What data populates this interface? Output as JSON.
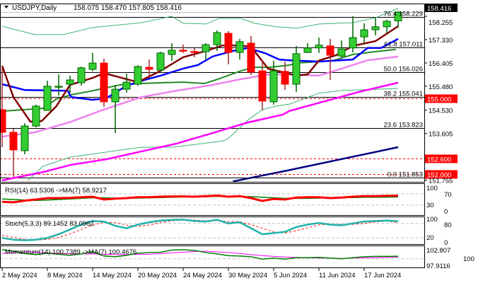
{
  "header": {
    "symbol_timeframe": "USDJPY,Daily",
    "ohlc_text": "158.075 158.470 157.805 158.416",
    "dropdown_icon": "triangle-down-icon"
  },
  "colors": {
    "bull": "#32cd32",
    "bear": "#ff0000",
    "ma_fast": "#800000",
    "ma_blue": "#0000ff",
    "ma_green": "#228b22",
    "ma_violet": "#ee82ee",
    "ma_magenta": "#ff00ff",
    "ma_navy": "#000080",
    "bollinger": "#3cb371",
    "rsi": "#ff0000",
    "rsi_ma": "#008000",
    "stoch": "#20b2aa",
    "stoch_signal": "#ff0000",
    "momentum": "#008000",
    "momentum_ma": "#ff00ff"
  },
  "price_axis": {
    "labels": [
      "158.255",
      "157.330",
      "156.405",
      "155.480",
      "154.530",
      "153.605",
      "151.755"
    ],
    "label_values": [
      158.255,
      157.33,
      156.405,
      155.48,
      154.53,
      153.605,
      151.755
    ],
    "current_price": "158.416",
    "levels": [
      {
        "text": "155.000",
        "value": 155.0
      },
      {
        "text": "152.600",
        "value": 152.6
      },
      {
        "text": "152.000",
        "value": 152.0
      }
    ]
  },
  "fibonacci": [
    {
      "text": "76.4 158.229",
      "value": 158.229
    },
    {
      "text": "61.8 157.011",
      "value": 157.011
    },
    {
      "text": "50.0 156.026",
      "value": 156.026
    },
    {
      "text": "38.2 155.041",
      "value": 155.041
    },
    {
      "text": "23.6 153.823",
      "value": 153.823
    },
    {
      "text": "0.0 151.853",
      "value": 151.853
    }
  ],
  "chart_data": {
    "type": "candlestick",
    "candles": [
      [
        154.55,
        156.29,
        153.06,
        153.65
      ],
      [
        153.65,
        153.79,
        151.88,
        152.95
      ],
      [
        152.92,
        154.01,
        152.78,
        153.9
      ],
      [
        153.9,
        154.75,
        153.85,
        154.69
      ],
      [
        154.52,
        155.7,
        154.52,
        155.48
      ],
      [
        155.45,
        155.95,
        155.11,
        155.48
      ],
      [
        155.56,
        155.9,
        155.22,
        155.73
      ],
      [
        155.62,
        156.26,
        155.5,
        156.21
      ],
      [
        156.15,
        156.8,
        156.07,
        156.4
      ],
      [
        156.4,
        156.57,
        154.66,
        154.86
      ],
      [
        154.86,
        155.53,
        153.62,
        155.36
      ],
      [
        155.36,
        155.98,
        155.22,
        155.64
      ],
      [
        155.56,
        156.32,
        155.5,
        156.26
      ],
      [
        156.23,
        156.54,
        155.81,
        156.15
      ],
      [
        156.12,
        156.85,
        156.05,
        156.8
      ],
      [
        156.74,
        157.19,
        156.49,
        156.91
      ],
      [
        156.91,
        157.13,
        156.8,
        156.9
      ],
      [
        156.86,
        157.0,
        156.63,
        156.84
      ],
      [
        156.85,
        157.19,
        156.54,
        157.13
      ],
      [
        157.13,
        157.7,
        156.88,
        157.61
      ],
      [
        157.58,
        157.67,
        156.35,
        156.82
      ],
      [
        156.82,
        157.36,
        156.54,
        157.25
      ],
      [
        157.19,
        157.47,
        155.92,
        156.04
      ],
      [
        156.09,
        156.51,
        154.52,
        154.89
      ],
      [
        154.86,
        156.49,
        154.75,
        156.09
      ],
      [
        156.07,
        156.46,
        155.33,
        155.56
      ],
      [
        155.56,
        157.08,
        155.25,
        156.77
      ],
      [
        156.82,
        157.19,
        156.8,
        157.0
      ],
      [
        157.0,
        157.41,
        156.8,
        157.11
      ],
      [
        157.08,
        157.36,
        155.73,
        156.71
      ],
      [
        156.68,
        157.3,
        156.57,
        156.96
      ],
      [
        157.0,
        158.26,
        156.82,
        157.41
      ],
      [
        157.44,
        157.98,
        157.16,
        157.72
      ],
      [
        157.72,
        158.2,
        157.5,
        157.84
      ],
      [
        157.84,
        158.12,
        157.58,
        158.06
      ],
      [
        158.075,
        158.47,
        157.805,
        158.416
      ]
    ],
    "overlays": [
      {
        "color_key": "bollinger",
        "width": 1,
        "points": [
          [
            0,
            157.86
          ],
          [
            2.9,
            157.53
          ],
          [
            5.4,
            157.53
          ],
          [
            8,
            157.81
          ],
          [
            12.3,
            158.0
          ],
          [
            15,
            158.26
          ],
          [
            16,
            157.98
          ],
          [
            18,
            157.95
          ],
          [
            19.2,
            158.17
          ],
          [
            21.1,
            158.17
          ],
          [
            22.3,
            157.98
          ],
          [
            24.2,
            157.84
          ],
          [
            25.4,
            157.81
          ],
          [
            26,
            157.78
          ],
          [
            28,
            157.95
          ],
          [
            31,
            158.0
          ],
          [
            33,
            158.2
          ],
          [
            35,
            158.57
          ]
        ]
      },
      {
        "color_key": "bollinger",
        "width": 1,
        "points": [
          [
            2.3,
            151.74
          ],
          [
            3.6,
            152.3
          ],
          [
            6.1,
            152.67
          ],
          [
            12.3,
            153.06
          ],
          [
            15.1,
            153.06
          ],
          [
            19.2,
            153.29
          ],
          [
            19.8,
            153.35
          ],
          [
            20.4,
            153.57
          ],
          [
            21.7,
            154.13
          ],
          [
            23,
            154.55
          ],
          [
            24.2,
            154.69
          ],
          [
            25.4,
            154.77
          ],
          [
            28,
            155.2
          ],
          [
            30,
            155.31
          ],
          [
            35,
            155.39
          ]
        ]
      },
      {
        "color_key": "ma_navy",
        "width": 2.5,
        "points": [
          [
            20.4,
            151.7
          ],
          [
            25.4,
            152.15
          ],
          [
            35,
            153.06
          ]
        ]
      },
      {
        "color_key": "ma_magenta",
        "width": 2.5,
        "points": [
          [
            0,
            151.74
          ],
          [
            3.6,
            152.07
          ],
          [
            6.1,
            152.36
          ],
          [
            9.2,
            152.58
          ],
          [
            12.3,
            152.89
          ],
          [
            15.4,
            153.2
          ],
          [
            18.6,
            153.62
          ],
          [
            21.7,
            154.04
          ],
          [
            24.8,
            154.35
          ],
          [
            25.4,
            154.5
          ],
          [
            31.5,
            155.25
          ],
          [
            35,
            155.62
          ]
        ]
      },
      {
        "color_key": "ma_violet",
        "width": 2.5,
        "points": [
          [
            0,
            153.48
          ],
          [
            2.9,
            153.65
          ],
          [
            6.1,
            154.07
          ],
          [
            8.6,
            154.49
          ],
          [
            12.3,
            155.05
          ],
          [
            15.4,
            155.3
          ],
          [
            18.6,
            155.53
          ],
          [
            21.1,
            155.76
          ],
          [
            23.6,
            155.95
          ],
          [
            25.4,
            155.95
          ],
          [
            28,
            155.9
          ],
          [
            29.8,
            156.15
          ],
          [
            32.3,
            156.51
          ],
          [
            35,
            156.66
          ]
        ]
      },
      {
        "color_key": "ma_green",
        "width": 2,
        "points": [
          [
            0,
            154.49
          ],
          [
            3.6,
            154.6
          ],
          [
            4.8,
            154.97
          ],
          [
            6.1,
            155.14
          ],
          [
            8,
            155.3
          ],
          [
            10.4,
            155.53
          ],
          [
            12.3,
            155.59
          ],
          [
            14.2,
            155.62
          ],
          [
            16,
            155.64
          ],
          [
            17.9,
            155.59
          ],
          [
            19.2,
            155.78
          ],
          [
            21.1,
            156.09
          ],
          [
            22.3,
            156.23
          ],
          [
            23.6,
            156.23
          ],
          [
            25.4,
            156.32
          ],
          [
            26,
            156.4
          ],
          [
            29.2,
            156.49
          ],
          [
            31,
            156.74
          ],
          [
            32.9,
            156.85
          ],
          [
            34.8,
            156.94
          ]
        ]
      },
      {
        "color_key": "ma_blue",
        "width": 2.5,
        "points": [
          [
            0,
            155.56
          ],
          [
            2,
            155.33
          ],
          [
            5.8,
            155.3
          ],
          [
            6.1,
            155.05
          ],
          [
            8,
            154.94
          ],
          [
            9.2,
            155.0
          ],
          [
            11,
            155.5
          ],
          [
            12.6,
            155.73
          ],
          [
            14,
            155.9
          ],
          [
            16,
            156.18
          ],
          [
            17.3,
            156.32
          ],
          [
            18.6,
            156.66
          ],
          [
            20.4,
            156.88
          ],
          [
            21.7,
            157.0
          ],
          [
            23.2,
            156.8
          ],
          [
            24.5,
            156.54
          ],
          [
            25.4,
            156.51
          ],
          [
            28,
            156.46
          ],
          [
            31,
            156.54
          ],
          [
            32.3,
            157.0
          ],
          [
            33.5,
            157.0
          ],
          [
            35,
            157.36
          ]
        ]
      },
      {
        "color_key": "ma_fast",
        "width": 2.5,
        "points": [
          [
            0,
            156.29
          ],
          [
            1,
            155.05
          ],
          [
            2.5,
            154.07
          ],
          [
            3.5,
            154.1
          ],
          [
            4.8,
            154.69
          ],
          [
            6,
            155.53
          ],
          [
            8,
            155.81
          ],
          [
            9,
            156.0
          ],
          [
            12,
            155.64
          ],
          [
            14,
            156.09
          ],
          [
            16,
            156.63
          ],
          [
            18,
            156.88
          ],
          [
            19.5,
            157.1
          ],
          [
            21,
            157.1
          ],
          [
            22,
            157.05
          ],
          [
            23.5,
            156.18
          ],
          [
            24.8,
            156.04
          ],
          [
            26,
            155.9
          ],
          [
            27,
            155.95
          ],
          [
            28,
            156.5
          ],
          [
            29.5,
            156.71
          ],
          [
            31,
            157.08
          ],
          [
            33,
            157.27
          ],
          [
            35,
            157.86
          ]
        ]
      }
    ],
    "x_tick_labels": [
      "2 May 2024",
      "8 May 2024",
      "14 May 2024",
      "20 May 2024",
      "24 May 2024",
      "30 May 2024",
      "5 Jun 2024",
      "11 Jun 2024",
      "17 Jun 2024"
    ],
    "x_tick_indices": [
      0,
      4,
      8,
      12,
      16,
      20,
      24,
      28,
      32
    ]
  },
  "rsi": {
    "label": "RSI(14) 63.5306  ->MA(7) 58.9217",
    "axis_labels": [
      "100",
      "70",
      "30",
      "0"
    ],
    "levels": [
      70,
      30
    ],
    "values": [
      42,
      40,
      46,
      50,
      55,
      55,
      56,
      58,
      60,
      50,
      53,
      55,
      58,
      58,
      60,
      61,
      61,
      60,
      62,
      64,
      60,
      62,
      55,
      45,
      52,
      50,
      57,
      58,
      58,
      55,
      57,
      60,
      62,
      62,
      63,
      63.53
    ],
    "ma": [
      52,
      50,
      48,
      47,
      48,
      50,
      52,
      54,
      56,
      56,
      55,
      55,
      55,
      56,
      57,
      58,
      59,
      60,
      60,
      61,
      61,
      61,
      60,
      58,
      56,
      54,
      54,
      54,
      55,
      56,
      57,
      57,
      58,
      58,
      58.5,
      58.92
    ]
  },
  "stoch": {
    "label": "Stoch(5,3,3) 89.1452 83.0962",
    "axis_labels": [
      "100",
      "80",
      "20",
      "0"
    ],
    "levels": [
      80,
      20
    ],
    "main": [
      20,
      12,
      10,
      12,
      20,
      35,
      55,
      75,
      90,
      88,
      70,
      60,
      75,
      85,
      92,
      95,
      96,
      90,
      88,
      95,
      80,
      85,
      60,
      35,
      40,
      45,
      65,
      75,
      82,
      75,
      72,
      80,
      88,
      90,
      92,
      89.15
    ],
    "signal": [
      30,
      22,
      14,
      11,
      14,
      22,
      37,
      55,
      73,
      84,
      83,
      73,
      68,
      73,
      84,
      91,
      94,
      94,
      91,
      91,
      88,
      87,
      75,
      60,
      45,
      40,
      50,
      62,
      74,
      77,
      76,
      76,
      80,
      86,
      90,
      83.1
    ]
  },
  "momentum": {
    "label": "Momentum(14) 100.7389  ->MA(7) 100.4676",
    "axis_labels": [
      "102.807",
      "100",
      "97.9116"
    ],
    "range": [
      97.9116,
      102.807
    ],
    "level": 100,
    "values": [
      102.6,
      102.2,
      101.5,
      101.2,
      101.6,
      101.3,
      101.0,
      101.4,
      102.0,
      100.8,
      100.6,
      101.0,
      101.6,
      101.8,
      101.9,
      102.5,
      102.6,
      102.4,
      101.8,
      101.4,
      100.9,
      100.8,
      100.6,
      99.9,
      100.2,
      99.9,
      100.3,
      100.3,
      100.4,
      100.2,
      100.0,
      100.3,
      100.6,
      100.7,
      100.7,
      100.74
    ],
    "ma": [
      101.5,
      101.8,
      102.0,
      101.9,
      101.7,
      101.5,
      101.4,
      101.4,
      101.4,
      101.3,
      101.2,
      101.2,
      101.3,
      101.3,
      101.5,
      101.7,
      101.9,
      102.1,
      102.2,
      102.0,
      101.8,
      101.5,
      101.2,
      100.9,
      100.7,
      100.5,
      100.4,
      100.3,
      100.2,
      100.2,
      100.1,
      100.2,
      100.3,
      100.3,
      100.4,
      100.47
    ]
  }
}
